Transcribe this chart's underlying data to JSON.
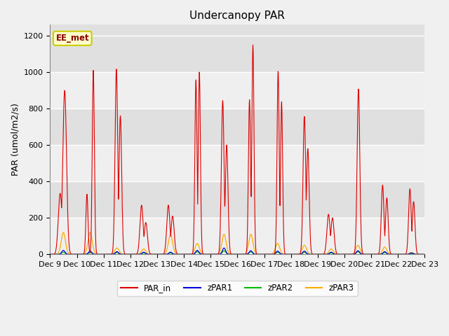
{
  "title": "Undercanopy PAR",
  "ylabel": "PAR (umol/m2/s)",
  "annotation": "EE_met",
  "ylim": [
    0,
    1260
  ],
  "yticks": [
    0,
    200,
    400,
    600,
    800,
    1000,
    1200
  ],
  "xtick_labels": [
    "Dec 9",
    "Dec 10",
    "Dec 11",
    "Dec 12",
    "Dec 13",
    "Dec 14",
    "Dec 15",
    "Dec 16",
    "Dec 17",
    "Dec 18",
    "Dec 19",
    "Dec 20",
    "Dec 21",
    "Dec 22",
    "Dec 23"
  ],
  "bg_color": "#e0e0e0",
  "fig_color": "#f0f0f0",
  "colors": {
    "PAR_in": "#dd0000",
    "zPAR1": "#0000dd",
    "zPAR2": "#00bb00",
    "zPAR3": "#ffaa00"
  },
  "n_days": 14,
  "ppd": 96,
  "title_fontsize": 11,
  "label_fontsize": 9,
  "tick_fontsize": 8,
  "day_peaks_PAR": [
    900,
    1010,
    1020,
    270,
    270,
    1000,
    845,
    1150,
    1010,
    760,
    220,
    910,
    380,
    360
  ],
  "day_peaks_PAR2": [
    335,
    330,
    760,
    175,
    210,
    960,
    600,
    850,
    840,
    580,
    200,
    380,
    310,
    290
  ],
  "day_peaks_zPAR3": [
    120,
    120,
    35,
    30,
    110,
    60,
    110,
    110,
    60,
    50,
    30,
    50,
    40,
    10
  ],
  "day_peaks_zPAR1": [
    22,
    18,
    15,
    12,
    12,
    22,
    35,
    20,
    18,
    18,
    12,
    20,
    15,
    8
  ],
  "day_peaks_zPAR2": [
    12,
    10,
    10,
    8,
    8,
    15,
    20,
    14,
    12,
    12,
    8,
    15,
    10,
    5
  ],
  "sigma_main": 0.04,
  "sigma_under": 0.08
}
